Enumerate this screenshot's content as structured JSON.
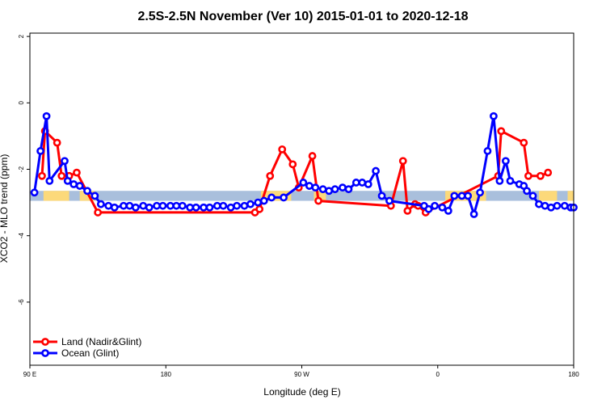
{
  "chart_data": {
    "type": "line",
    "title": "2.5S-2.5N November (Ver 10)   2015-01-01 to 2020-12-18",
    "xlabel": "Longitude (deg E)",
    "ylabel": "XCO2 - MLO trend (ppm)",
    "xlim": [
      90,
      450
    ],
    "ylim": [
      -7.9,
      2.1
    ],
    "x_ticks": [
      {
        "value": 90,
        "label": "90 E"
      },
      {
        "value": 180,
        "label": "180"
      },
      {
        "value": 270,
        "label": "90 W"
      },
      {
        "value": 360,
        "label": "0"
      },
      {
        "value": 450,
        "label": "180"
      }
    ],
    "y_ticks": [
      {
        "value": 2,
        "label": "2"
      },
      {
        "value": 0,
        "label": "0"
      },
      {
        "value": -2,
        "label": "-2"
      },
      {
        "value": -4,
        "label": "-4"
      },
      {
        "value": -6,
        "label": "-6"
      }
    ],
    "grid": false,
    "legend_position": "bottom-left",
    "band": {
      "y_low": -2.95,
      "y_high": -2.65,
      "color": "#a9bfdc",
      "land_color": "#fcd97a"
    },
    "land_band_segments": [
      [
        99,
        116
      ],
      [
        123,
        133
      ],
      [
        243,
        263
      ],
      [
        278,
        286
      ],
      [
        365,
        392
      ],
      [
        427,
        439
      ],
      [
        446,
        452
      ]
    ],
    "series": [
      {
        "name": "Land (Nadir&Glint)",
        "color": "#ff0000",
        "x": [
          98,
          100,
          108,
          111,
          116,
          121,
          135,
          239,
          242,
          249,
          257,
          264,
          268,
          277,
          281,
          329,
          337,
          340,
          345,
          347,
          352,
          400,
          402,
          417,
          420,
          428,
          433
        ],
        "y": [
          -2.2,
          -0.85,
          -1.2,
          -2.2,
          -2.2,
          -2.1,
          -3.3,
          -3.3,
          -3.2,
          -2.2,
          -1.4,
          -1.85,
          -2.55,
          -1.6,
          -2.95,
          -3.1,
          -1.75,
          -3.25,
          -3.05,
          -3.1,
          -3.3,
          -2.2,
          -0.85,
          -1.2,
          -2.2,
          -2.2,
          -2.1
        ]
      },
      {
        "name": "Ocean (Glint)",
        "color": "#0000ff",
        "x": [
          93,
          97,
          101,
          103,
          113,
          115,
          119,
          123,
          128,
          133,
          137,
          142,
          146,
          152,
          156,
          160,
          165,
          169,
          174,
          178,
          183,
          187,
          191,
          196,
          200,
          205,
          209,
          214,
          218,
          223,
          227,
          232,
          236,
          241,
          245,
          250,
          258,
          271,
          275,
          279,
          284,
          288,
          292,
          297,
          301,
          306,
          310,
          314,
          319,
          323,
          328,
          351,
          354,
          358,
          363,
          367,
          371,
          376,
          380,
          384,
          388,
          393,
          397,
          401,
          405,
          408,
          414,
          417,
          419,
          423,
          427,
          431,
          435,
          439,
          444,
          448,
          450
        ],
        "y": [
          -2.7,
          -1.45,
          -0.4,
          -2.35,
          -1.75,
          -2.35,
          -2.45,
          -2.5,
          -2.65,
          -2.8,
          -3.05,
          -3.1,
          -3.15,
          -3.1,
          -3.1,
          -3.15,
          -3.1,
          -3.15,
          -3.1,
          -3.1,
          -3.1,
          -3.1,
          -3.1,
          -3.15,
          -3.15,
          -3.15,
          -3.15,
          -3.1,
          -3.1,
          -3.15,
          -3.1,
          -3.1,
          -3.05,
          -3.0,
          -2.95,
          -2.85,
          -2.85,
          -2.4,
          -2.5,
          -2.55,
          -2.6,
          -2.65,
          -2.6,
          -2.55,
          -2.6,
          -2.4,
          -2.4,
          -2.45,
          -2.05,
          -2.8,
          -2.95,
          -3.1,
          -3.2,
          -3.1,
          -3.15,
          -3.25,
          -2.8,
          -2.8,
          -2.8,
          -3.35,
          -2.7,
          -1.45,
          -0.4,
          -2.35,
          -1.75,
          -2.35,
          -2.45,
          -2.5,
          -2.65,
          -2.8,
          -3.05,
          -3.1,
          -3.15,
          -3.1,
          -3.1,
          -3.15,
          -3.15
        ]
      }
    ]
  }
}
